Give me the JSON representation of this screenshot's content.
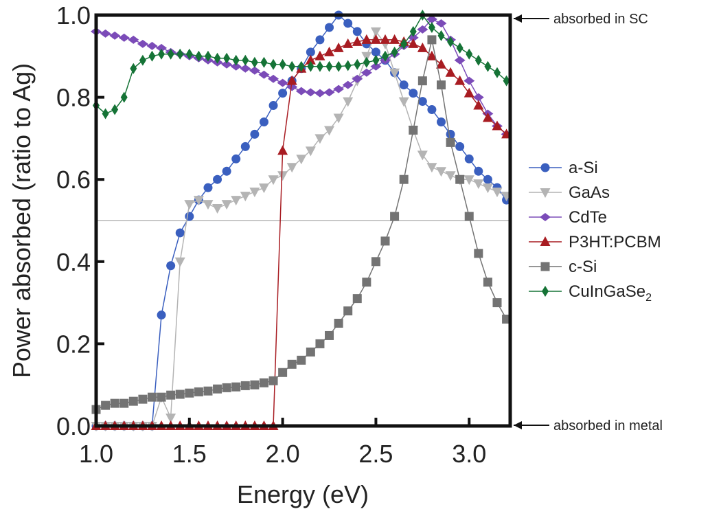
{
  "chart_data": {
    "type": "line",
    "xlabel": "Energy (eV)",
    "ylabel": "Power absorbed (ratio to Ag)",
    "xlim": [
      1.0,
      3.22
    ],
    "ylim": [
      0.0,
      1.0
    ],
    "x_ticks": [
      "1.0",
      "1.5",
      "2.0",
      "2.5",
      "3.0"
    ],
    "x_tick_values": [
      1.0,
      1.5,
      2.0,
      2.5,
      3.0
    ],
    "y_ticks": [
      "0.0",
      "0.2",
      "0.4",
      "0.6",
      "0.8",
      "1.0"
    ],
    "y_tick_values": [
      0.0,
      0.2,
      0.4,
      0.6,
      0.8,
      1.0
    ],
    "reference_line": 0.5,
    "legend_position": "right",
    "annotations": {
      "top": "absorbed in SC",
      "bottom": "absorbed in metal"
    },
    "series": [
      {
        "name": "a-Si",
        "sub": "",
        "color": "#3a5fbf",
        "marker": "circle",
        "points": [
          [
            1.0,
            0.0
          ],
          [
            1.05,
            0.0
          ],
          [
            1.1,
            0.0
          ],
          [
            1.15,
            0.0
          ],
          [
            1.2,
            0.0
          ],
          [
            1.25,
            0.0
          ],
          [
            1.3,
            0.0
          ],
          [
            1.35,
            0.27
          ],
          [
            1.4,
            0.39
          ],
          [
            1.45,
            0.47
          ],
          [
            1.5,
            0.51
          ],
          [
            1.55,
            0.55
          ],
          [
            1.6,
            0.58
          ],
          [
            1.65,
            0.6
          ],
          [
            1.7,
            0.62
          ],
          [
            1.75,
            0.65
          ],
          [
            1.8,
            0.68
          ],
          [
            1.85,
            0.71
          ],
          [
            1.9,
            0.74
          ],
          [
            1.95,
            0.78
          ],
          [
            2.0,
            0.81
          ],
          [
            2.05,
            0.84
          ],
          [
            2.1,
            0.87
          ],
          [
            2.15,
            0.91
          ],
          [
            2.2,
            0.94
          ],
          [
            2.25,
            0.97
          ],
          [
            2.3,
            1.0
          ],
          [
            2.35,
            0.98
          ],
          [
            2.4,
            0.96
          ],
          [
            2.45,
            0.93
          ],
          [
            2.5,
            0.91
          ],
          [
            2.55,
            0.89
          ],
          [
            2.6,
            0.86
          ],
          [
            2.65,
            0.83
          ],
          [
            2.7,
            0.81
          ],
          [
            2.75,
            0.79
          ],
          [
            2.8,
            0.77
          ],
          [
            2.85,
            0.74
          ],
          [
            2.9,
            0.71
          ],
          [
            2.95,
            0.68
          ],
          [
            3.0,
            0.65
          ],
          [
            3.05,
            0.62
          ],
          [
            3.1,
            0.6
          ],
          [
            3.15,
            0.58
          ],
          [
            3.2,
            0.55
          ]
        ]
      },
      {
        "name": "GaAs",
        "sub": "",
        "color": "#b4b4b4",
        "marker": "triangle-down",
        "points": [
          [
            1.0,
            0.0
          ],
          [
            1.05,
            0.0
          ],
          [
            1.1,
            0.0
          ],
          [
            1.15,
            0.0
          ],
          [
            1.2,
            0.0
          ],
          [
            1.25,
            0.0
          ],
          [
            1.3,
            0.0
          ],
          [
            1.35,
            0.07
          ],
          [
            1.4,
            0.02
          ],
          [
            1.45,
            0.4
          ],
          [
            1.5,
            0.54
          ],
          [
            1.55,
            0.55
          ],
          [
            1.6,
            0.54
          ],
          [
            1.65,
            0.53
          ],
          [
            1.7,
            0.54
          ],
          [
            1.75,
            0.55
          ],
          [
            1.8,
            0.56
          ],
          [
            1.85,
            0.57
          ],
          [
            1.9,
            0.58
          ],
          [
            1.95,
            0.6
          ],
          [
            2.0,
            0.61
          ],
          [
            2.05,
            0.63
          ],
          [
            2.1,
            0.65
          ],
          [
            2.15,
            0.67
          ],
          [
            2.2,
            0.7
          ],
          [
            2.25,
            0.72
          ],
          [
            2.3,
            0.75
          ],
          [
            2.35,
            0.79
          ],
          [
            2.4,
            0.84
          ],
          [
            2.45,
            0.9
          ],
          [
            2.5,
            0.96
          ],
          [
            2.55,
            0.93
          ],
          [
            2.6,
            0.86
          ],
          [
            2.65,
            0.79
          ],
          [
            2.7,
            0.72
          ],
          [
            2.75,
            0.66
          ],
          [
            2.8,
            0.63
          ],
          [
            2.85,
            0.62
          ],
          [
            2.9,
            0.61
          ],
          [
            2.95,
            0.6
          ],
          [
            3.0,
            0.6
          ],
          [
            3.05,
            0.59
          ],
          [
            3.1,
            0.58
          ],
          [
            3.15,
            0.57
          ],
          [
            3.2,
            0.56
          ]
        ]
      },
      {
        "name": "CdTe",
        "sub": "",
        "color": "#7b4bb8",
        "marker": "diamond",
        "points": [
          [
            1.0,
            0.96
          ],
          [
            1.05,
            0.955
          ],
          [
            1.1,
            0.95
          ],
          [
            1.15,
            0.945
          ],
          [
            1.2,
            0.94
          ],
          [
            1.25,
            0.93
          ],
          [
            1.3,
            0.925
          ],
          [
            1.35,
            0.92
          ],
          [
            1.4,
            0.91
          ],
          [
            1.45,
            0.905
          ],
          [
            1.5,
            0.9
          ],
          [
            1.55,
            0.895
          ],
          [
            1.6,
            0.89
          ],
          [
            1.65,
            0.885
          ],
          [
            1.7,
            0.88
          ],
          [
            1.75,
            0.875
          ],
          [
            1.8,
            0.87
          ],
          [
            1.85,
            0.865
          ],
          [
            1.9,
            0.855
          ],
          [
            1.95,
            0.845
          ],
          [
            2.0,
            0.835
          ],
          [
            2.05,
            0.825
          ],
          [
            2.1,
            0.815
          ],
          [
            2.15,
            0.812
          ],
          [
            2.2,
            0.81
          ],
          [
            2.25,
            0.812
          ],
          [
            2.3,
            0.82
          ],
          [
            2.35,
            0.83
          ],
          [
            2.4,
            0.845
          ],
          [
            2.45,
            0.86
          ],
          [
            2.5,
            0.875
          ],
          [
            2.55,
            0.89
          ],
          [
            2.6,
            0.905
          ],
          [
            2.65,
            0.925
          ],
          [
            2.7,
            0.945
          ],
          [
            2.75,
            0.965
          ],
          [
            2.8,
            0.99
          ],
          [
            2.85,
            0.98
          ],
          [
            2.9,
            0.94
          ],
          [
            2.95,
            0.89
          ],
          [
            3.0,
            0.84
          ],
          [
            3.05,
            0.8
          ],
          [
            3.1,
            0.76
          ],
          [
            3.15,
            0.73
          ],
          [
            3.2,
            0.71
          ]
        ]
      },
      {
        "name": "P3HT:PCBM",
        "sub": "",
        "color": "#a81c22",
        "marker": "triangle-up",
        "points": [
          [
            1.0,
            0.0
          ],
          [
            1.05,
            0.0
          ],
          [
            1.1,
            0.0
          ],
          [
            1.15,
            0.0
          ],
          [
            1.2,
            0.0
          ],
          [
            1.25,
            0.0
          ],
          [
            1.3,
            0.0
          ],
          [
            1.35,
            0.0
          ],
          [
            1.4,
            0.0
          ],
          [
            1.45,
            0.0
          ],
          [
            1.5,
            0.0
          ],
          [
            1.55,
            0.0
          ],
          [
            1.6,
            0.0
          ],
          [
            1.65,
            0.0
          ],
          [
            1.7,
            0.0
          ],
          [
            1.75,
            0.0
          ],
          [
            1.8,
            0.0
          ],
          [
            1.85,
            0.0
          ],
          [
            1.9,
            0.0
          ],
          [
            1.95,
            0.0
          ],
          [
            2.0,
            0.67
          ],
          [
            2.05,
            0.84
          ],
          [
            2.1,
            0.87
          ],
          [
            2.15,
            0.89
          ],
          [
            2.2,
            0.9
          ],
          [
            2.25,
            0.91
          ],
          [
            2.3,
            0.92
          ],
          [
            2.35,
            0.93
          ],
          [
            2.4,
            0.935
          ],
          [
            2.45,
            0.94
          ],
          [
            2.5,
            0.94
          ],
          [
            2.55,
            0.94
          ],
          [
            2.6,
            0.94
          ],
          [
            2.65,
            0.935
          ],
          [
            2.7,
            0.93
          ],
          [
            2.75,
            0.92
          ],
          [
            2.8,
            0.9
          ],
          [
            2.85,
            0.88
          ],
          [
            2.9,
            0.86
          ],
          [
            2.95,
            0.84
          ],
          [
            3.0,
            0.81
          ],
          [
            3.05,
            0.78
          ],
          [
            3.1,
            0.75
          ],
          [
            3.15,
            0.73
          ],
          [
            3.2,
            0.71
          ]
        ]
      },
      {
        "name": "c-Si",
        "sub": "",
        "color": "#737373",
        "marker": "square",
        "points": [
          [
            1.0,
            0.04
          ],
          [
            1.05,
            0.05
          ],
          [
            1.1,
            0.055
          ],
          [
            1.15,
            0.055
          ],
          [
            1.2,
            0.06
          ],
          [
            1.25,
            0.065
          ],
          [
            1.3,
            0.07
          ],
          [
            1.35,
            0.07
          ],
          [
            1.4,
            0.075
          ],
          [
            1.45,
            0.077
          ],
          [
            1.5,
            0.08
          ],
          [
            1.55,
            0.083
          ],
          [
            1.6,
            0.085
          ],
          [
            1.65,
            0.09
          ],
          [
            1.7,
            0.093
          ],
          [
            1.75,
            0.095
          ],
          [
            1.8,
            0.098
          ],
          [
            1.85,
            0.1
          ],
          [
            1.9,
            0.105
          ],
          [
            1.95,
            0.11
          ],
          [
            2.0,
            0.13
          ],
          [
            2.05,
            0.15
          ],
          [
            2.1,
            0.16
          ],
          [
            2.15,
            0.18
          ],
          [
            2.2,
            0.2
          ],
          [
            2.25,
            0.22
          ],
          [
            2.3,
            0.25
          ],
          [
            2.35,
            0.28
          ],
          [
            2.4,
            0.31
          ],
          [
            2.45,
            0.35
          ],
          [
            2.5,
            0.4
          ],
          [
            2.55,
            0.45
          ],
          [
            2.6,
            0.51
          ],
          [
            2.65,
            0.6
          ],
          [
            2.7,
            0.72
          ],
          [
            2.75,
            0.84
          ],
          [
            2.8,
            0.94
          ],
          [
            2.85,
            0.83
          ],
          [
            2.9,
            0.69
          ],
          [
            2.95,
            0.6
          ],
          [
            3.0,
            0.51
          ],
          [
            3.05,
            0.42
          ],
          [
            3.1,
            0.35
          ],
          [
            3.15,
            0.3
          ],
          [
            3.2,
            0.26
          ]
        ]
      },
      {
        "name": "CuInGaSe",
        "sub": "2",
        "color": "#157336",
        "marker": "thin-diamond",
        "points": [
          [
            1.0,
            0.78
          ],
          [
            1.05,
            0.76
          ],
          [
            1.1,
            0.77
          ],
          [
            1.15,
            0.8
          ],
          [
            1.2,
            0.87
          ],
          [
            1.25,
            0.89
          ],
          [
            1.3,
            0.9
          ],
          [
            1.35,
            0.905
          ],
          [
            1.4,
            0.905
          ],
          [
            1.45,
            0.905
          ],
          [
            1.5,
            0.905
          ],
          [
            1.55,
            0.9
          ],
          [
            1.6,
            0.9
          ],
          [
            1.65,
            0.895
          ],
          [
            1.7,
            0.895
          ],
          [
            1.75,
            0.89
          ],
          [
            1.8,
            0.89
          ],
          [
            1.85,
            0.885
          ],
          [
            1.9,
            0.885
          ],
          [
            1.95,
            0.88
          ],
          [
            2.0,
            0.88
          ],
          [
            2.05,
            0.875
          ],
          [
            2.1,
            0.875
          ],
          [
            2.15,
            0.875
          ],
          [
            2.2,
            0.875
          ],
          [
            2.25,
            0.875
          ],
          [
            2.3,
            0.875
          ],
          [
            2.35,
            0.877
          ],
          [
            2.4,
            0.88
          ],
          [
            2.45,
            0.885
          ],
          [
            2.5,
            0.89
          ],
          [
            2.55,
            0.9
          ],
          [
            2.6,
            0.91
          ],
          [
            2.65,
            0.93
          ],
          [
            2.7,
            0.96
          ],
          [
            2.75,
            1.0
          ],
          [
            2.8,
            0.97
          ],
          [
            2.85,
            0.95
          ],
          [
            2.9,
            0.935
          ],
          [
            2.95,
            0.92
          ],
          [
            3.0,
            0.905
          ],
          [
            3.05,
            0.89
          ],
          [
            3.1,
            0.875
          ],
          [
            3.15,
            0.86
          ],
          [
            3.2,
            0.84
          ]
        ]
      }
    ]
  }
}
